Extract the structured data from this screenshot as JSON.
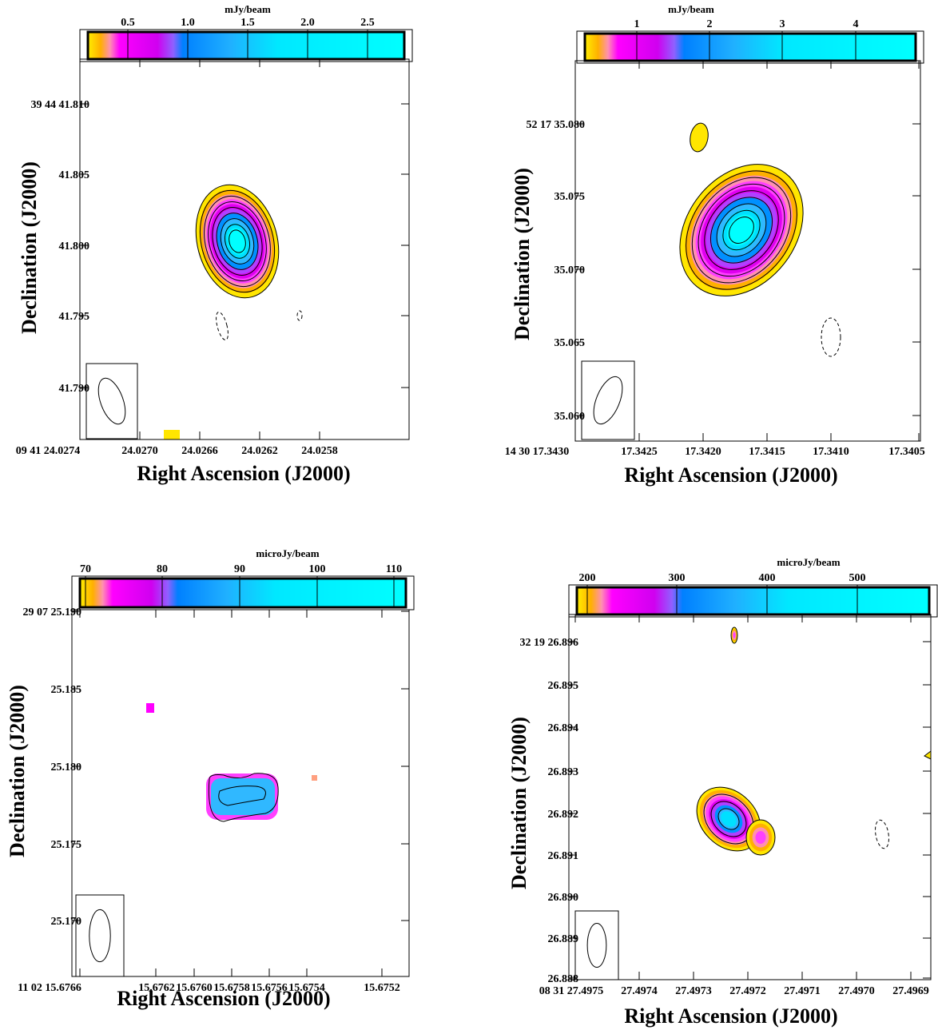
{
  "panels": [
    {
      "colorbar_label": "mJy/beam",
      "colorbar_ticks": [
        "0.5",
        "1.0",
        "1.5",
        "2.0",
        "2.5"
      ],
      "y_ticks": [
        "39 44 41.810",
        "41.805",
        "41.800",
        "41.795",
        "41.790"
      ],
      "x_ticks": [
        "09 41 24.0274",
        "24.0270",
        "24.0266",
        "24.0262",
        "24.0258"
      ],
      "x_label": "Right Ascension (J2000)",
      "y_label": "Declination (J2000)"
    },
    {
      "colorbar_label": "mJy/beam",
      "colorbar_ticks": [
        "1",
        "2",
        "3",
        "4"
      ],
      "y_ticks": [
        "52 17 35.080",
        "35.075",
        "35.070",
        "35.065",
        "35.060"
      ],
      "x_ticks": [
        "14 30 17.3430",
        "17.3425",
        "17.3420",
        "17.3415",
        "17.3410",
        "17.3405"
      ],
      "x_label": "Right Ascension (J2000)",
      "y_label": "Declination (J2000)"
    },
    {
      "colorbar_label": "microJy/beam",
      "colorbar_ticks": [
        "70",
        "80",
        "90",
        "100",
        "110"
      ],
      "y_ticks": [
        "29 07 25.190",
        "25.185",
        "25.180",
        "25.175",
        "25.170"
      ],
      "x_ticks": [
        "11 02 15.6766",
        "15.6762",
        "15.6760",
        "15.6758",
        "15.6756",
        "15.6754",
        "15.6752"
      ],
      "x_label": "Right Ascension (J2000)",
      "y_label": "Declination (J2000)"
    },
    {
      "colorbar_label": "microJy/beam",
      "colorbar_ticks": [
        "200",
        "300",
        "400",
        "500"
      ],
      "y_ticks": [
        "32 19 26.896",
        "26.895",
        "26.894",
        "26.893",
        "26.892",
        "26.891",
        "26.890",
        "26.889",
        "26.888"
      ],
      "x_ticks": [
        "08 31 27.4975",
        "27.4974",
        "27.4973",
        "27.4972",
        "27.4971",
        "27.4970",
        "27.4969"
      ],
      "x_label": "Right Ascension (J2000)",
      "y_label": "Declination (J2000)"
    }
  ]
}
